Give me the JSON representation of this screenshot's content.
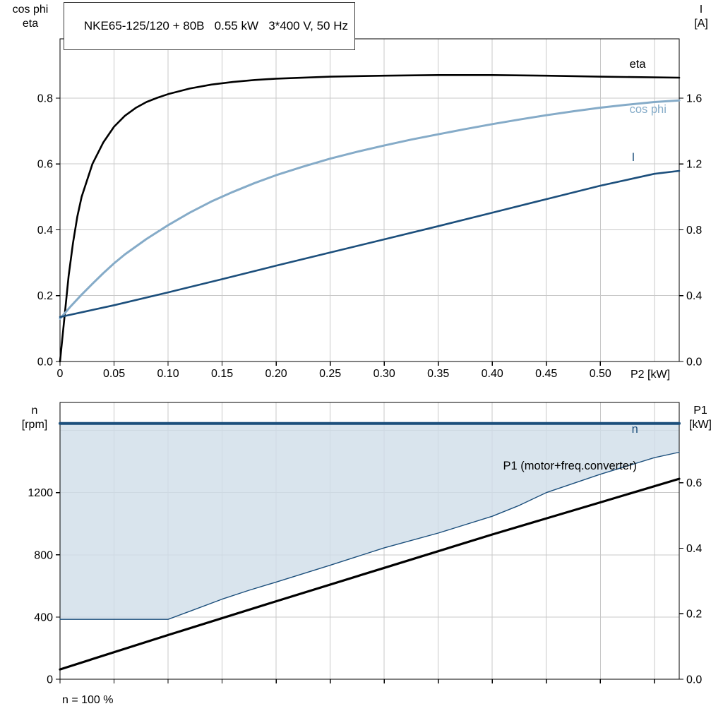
{
  "header": {
    "title": "NKE65-125/120 + 80B   0.55 kW   3*400 V, 50 Hz"
  },
  "labels": {
    "top_left_axis_line1": "cos phi",
    "top_left_axis_line2": "eta",
    "top_right_axis_line1": "I",
    "top_right_axis_line2": "[A]",
    "x_axis_label": "P2 [kW]",
    "bottom_left_axis_line1": "n",
    "bottom_left_axis_line2": "[rpm]",
    "bottom_right_axis_line1": "P1",
    "bottom_right_axis_line2": "[kW]",
    "footnote": "n = 100 %"
  },
  "colors": {
    "black": "#000000",
    "dark_blue": "#1c4f7c",
    "light_blue": "#85abc8",
    "band_fill": "#cfdde9",
    "grid": "#c8c8c8",
    "border": "#000000"
  },
  "chart_data": [
    {
      "id": "top",
      "type": "line",
      "title": "NKE65-125/120 + 80B   0.55 kW   3*400 V, 50 Hz",
      "xlabel": "P2 [kW]",
      "xlim": [
        0,
        0.573
      ],
      "xticks": {
        "values": [
          0,
          0.05,
          0.1,
          0.15,
          0.2,
          0.25,
          0.3,
          0.35,
          0.4,
          0.45,
          0.5
        ],
        "labels": [
          "0",
          "0.05",
          "0.10",
          "0.15",
          "0.20",
          "0.25",
          "0.30",
          "0.35",
          "0.40",
          "0.45",
          "0.50"
        ],
        "grid_extra": [
          0.55
        ]
      },
      "left_axis": {
        "name": "cos phi / eta",
        "lim": [
          0,
          0.98
        ],
        "ticks": [
          0,
          0.2,
          0.4,
          0.6,
          0.8
        ],
        "labels": [
          "0.0",
          "0.2",
          "0.4",
          "0.6",
          "0.8"
        ],
        "grid": [
          0.2,
          0.4,
          0.6,
          0.8
        ]
      },
      "right_axis": {
        "name": "I [A]",
        "lim": [
          0,
          1.96
        ],
        "ticks": [
          0,
          0.4,
          0.8,
          1.2,
          1.6
        ],
        "labels": [
          "0.0",
          "0.4",
          "0.8",
          "1.2",
          "1.6"
        ]
      },
      "series": [
        {
          "name": "eta",
          "axis": "left",
          "color": "black",
          "width": 2.6,
          "points": [
            [
              0,
              0
            ],
            [
              0.004,
              0.13
            ],
            [
              0.008,
              0.26
            ],
            [
              0.012,
              0.36
            ],
            [
              0.016,
              0.44
            ],
            [
              0.02,
              0.5
            ],
            [
              0.03,
              0.6
            ],
            [
              0.04,
              0.665
            ],
            [
              0.05,
              0.713
            ],
            [
              0.06,
              0.746
            ],
            [
              0.07,
              0.77
            ],
            [
              0.08,
              0.788
            ],
            [
              0.09,
              0.801
            ],
            [
              0.1,
              0.812
            ],
            [
              0.12,
              0.829
            ],
            [
              0.14,
              0.841
            ],
            [
              0.16,
              0.849
            ],
            [
              0.18,
              0.855
            ],
            [
              0.2,
              0.859
            ],
            [
              0.25,
              0.865
            ],
            [
              0.3,
              0.868
            ],
            [
              0.35,
              0.87
            ],
            [
              0.4,
              0.87
            ],
            [
              0.45,
              0.868
            ],
            [
              0.5,
              0.865
            ],
            [
              0.55,
              0.863
            ],
            [
              0.573,
              0.862
            ]
          ]
        },
        {
          "name": "cos-phi",
          "axis": "left",
          "color": "light_blue",
          "width": 3,
          "points": [
            [
              0,
              0.13
            ],
            [
              0.01,
              0.168
            ],
            [
              0.02,
              0.203
            ],
            [
              0.03,
              0.236
            ],
            [
              0.04,
              0.268
            ],
            [
              0.05,
              0.298
            ],
            [
              0.06,
              0.325
            ],
            [
              0.08,
              0.372
            ],
            [
              0.1,
              0.414
            ],
            [
              0.12,
              0.452
            ],
            [
              0.14,
              0.486
            ],
            [
              0.16,
              0.515
            ],
            [
              0.18,
              0.542
            ],
            [
              0.2,
              0.566
            ],
            [
              0.225,
              0.592
            ],
            [
              0.25,
              0.616
            ],
            [
              0.275,
              0.637
            ],
            [
              0.3,
              0.656
            ],
            [
              0.325,
              0.674
            ],
            [
              0.35,
              0.69
            ],
            [
              0.375,
              0.706
            ],
            [
              0.4,
              0.721
            ],
            [
              0.425,
              0.735
            ],
            [
              0.45,
              0.748
            ],
            [
              0.475,
              0.76
            ],
            [
              0.5,
              0.771
            ],
            [
              0.525,
              0.78
            ],
            [
              0.55,
              0.788
            ],
            [
              0.573,
              0.793
            ]
          ]
        },
        {
          "name": "current",
          "axis": "right",
          "color": "dark_blue",
          "width": 2.6,
          "points": [
            [
              0,
              0.27
            ],
            [
              0.05,
              0.342
            ],
            [
              0.1,
              0.42
            ],
            [
              0.15,
              0.5
            ],
            [
              0.2,
              0.582
            ],
            [
              0.25,
              0.662
            ],
            [
              0.3,
              0.742
            ],
            [
              0.35,
              0.822
            ],
            [
              0.4,
              0.904
            ],
            [
              0.45,
              0.986
            ],
            [
              0.5,
              1.068
            ],
            [
              0.55,
              1.14
            ],
            [
              0.573,
              1.158
            ]
          ]
        }
      ],
      "annotations": [
        {
          "name": "eta-label",
          "text": "eta",
          "x": 0.527,
          "y": 0.892,
          "axis": "left",
          "color": "black"
        },
        {
          "name": "cos-phi-label",
          "text": "cos phi",
          "x": 0.527,
          "y": 0.755,
          "axis": "left",
          "color": "light_blue"
        },
        {
          "name": "current-label",
          "text": "I",
          "x": 0.529,
          "y": 0.609,
          "axis": "left",
          "color": "dark_blue"
        }
      ]
    },
    {
      "id": "bottom",
      "type": "line",
      "title": "",
      "xlabel": "",
      "xlim": [
        0,
        0.573
      ],
      "xticks": {
        "values": [
          0,
          0.05,
          0.1,
          0.15,
          0.2,
          0.25,
          0.3,
          0.35,
          0.4,
          0.45,
          0.5,
          0.55
        ],
        "labels": [],
        "grid_extra": []
      },
      "left_axis": {
        "name": "n [rpm]",
        "lim": [
          0,
          1780
        ],
        "ticks": [
          0,
          400,
          800,
          1200
        ],
        "labels": [
          "0",
          "400",
          "800",
          "1200"
        ],
        "grid": [
          400,
          800,
          1200,
          1600
        ]
      },
      "right_axis": {
        "name": "P1 [kW]",
        "lim": [
          0,
          0.845
        ],
        "ticks": [
          0,
          0.2,
          0.4,
          0.6
        ],
        "labels": [
          "0.0",
          "0.2",
          "0.4",
          "0.6"
        ]
      },
      "band": {
        "upper": "n",
        "lower": "speed-range-lower",
        "color": "band_fill",
        "opacity": 0.8
      },
      "series": [
        {
          "name": "n",
          "axis": "left",
          "color": "dark_blue",
          "width": 4,
          "points": [
            [
              0,
              1645
            ],
            [
              0.573,
              1645
            ]
          ]
        },
        {
          "name": "speed-range-lower",
          "axis": "left",
          "color": "dark_blue",
          "width": 1.4,
          "points": [
            [
              0,
              385
            ],
            [
              0.1,
              385
            ],
            [
              0.12,
              437
            ],
            [
              0.15,
              515
            ],
            [
              0.175,
              572
            ],
            [
              0.2,
              625
            ],
            [
              0.25,
              733
            ],
            [
              0.3,
              845
            ],
            [
              0.35,
              940
            ],
            [
              0.4,
              1048
            ],
            [
              0.425,
              1118
            ],
            [
              0.45,
              1200
            ],
            [
              0.5,
              1318
            ],
            [
              0.55,
              1425
            ],
            [
              0.573,
              1460
            ]
          ]
        },
        {
          "name": "p1",
          "axis": "right",
          "color": "black",
          "width": 3.2,
          "points": [
            [
              0,
              0.03
            ],
            [
              0.1,
              0.135
            ],
            [
              0.2,
              0.238
            ],
            [
              0.3,
              0.34
            ],
            [
              0.4,
              0.442
            ],
            [
              0.5,
              0.54
            ],
            [
              0.573,
              0.612
            ]
          ]
        }
      ],
      "annotations": [
        {
          "name": "n-label",
          "text": "n",
          "x": 0.529,
          "y": 1585,
          "axis": "left",
          "color": "dark_blue"
        },
        {
          "name": "p1-label",
          "text": "P1 (motor+freq.converter)",
          "x": 0.41,
          "y": 0.64,
          "axis": "right",
          "color": "black"
        }
      ]
    }
  ]
}
